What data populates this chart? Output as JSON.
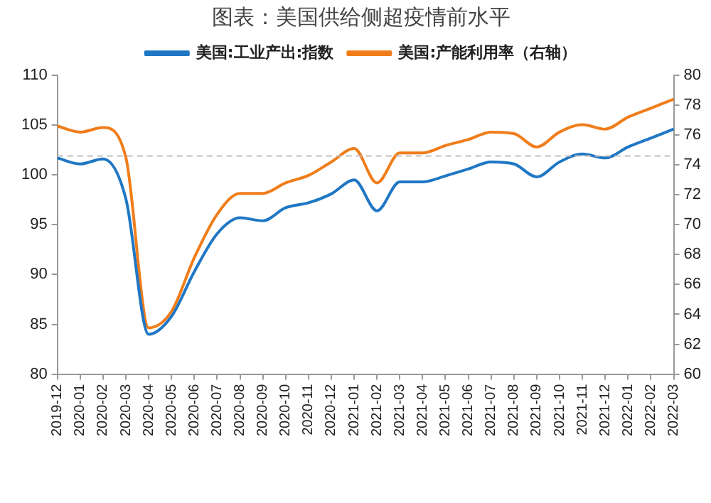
{
  "chart_data": {
    "type": "line",
    "title": "图表：美国供给侧超疫情前水平",
    "categories": [
      "2019-12",
      "2020-01",
      "2020-02",
      "2020-03",
      "2020-04",
      "2020-05",
      "2020-06",
      "2020-07",
      "2020-08",
      "2020-09",
      "2020-10",
      "2020-11",
      "2020-12",
      "2021-01",
      "2021-02",
      "2021-03",
      "2021-04",
      "2021-05",
      "2021-06",
      "2021-07",
      "2021-08",
      "2021-09",
      "2021-10",
      "2021-11",
      "2021-12",
      "2022-01",
      "2022-02",
      "2022-03"
    ],
    "series": [
      {
        "name": "美国:工业产出:指数",
        "color": "#1f77c4",
        "values": [
          101.7,
          101.1,
          101.6,
          97.6,
          84.0,
          85.8,
          90.3,
          94.1,
          95.7,
          95.4,
          96.7,
          97.2,
          98.1,
          99.5,
          96.4,
          99.3,
          99.3,
          99.9,
          100.6,
          101.3,
          101.1,
          99.8,
          101.3,
          102.1,
          101.7,
          102.8,
          103.7,
          104.6
        ]
      },
      {
        "name": "美国:产能利用率（右轴）",
        "color": "#f07d1a",
        "axis": "y2",
        "values": [
          76.6,
          76.2,
          76.5,
          74.5,
          63.1,
          64.2,
          67.8,
          70.7,
          72.1,
          72.1,
          72.8,
          73.3,
          74.2,
          75.1,
          72.8,
          74.8,
          74.8,
          75.3,
          75.7,
          76.2,
          76.1,
          75.2,
          76.2,
          76.7,
          76.4,
          77.2,
          77.8,
          78.4
        ]
      }
    ],
    "ylim": [
      80,
      110
    ],
    "yticks": [
      80,
      85,
      90,
      95,
      100,
      105,
      110
    ],
    "y2lim": [
      60,
      80
    ],
    "y2ticks": [
      60,
      62,
      64,
      66,
      68,
      70,
      72,
      74,
      76,
      78,
      80
    ],
    "ref_lines": [
      {
        "axis": "y",
        "value": 101.9,
        "color": "#bfbfbf",
        "line_style": "dashed"
      }
    ],
    "legend": "top",
    "grid": false,
    "marker": "none",
    "line_style": "solid"
  }
}
